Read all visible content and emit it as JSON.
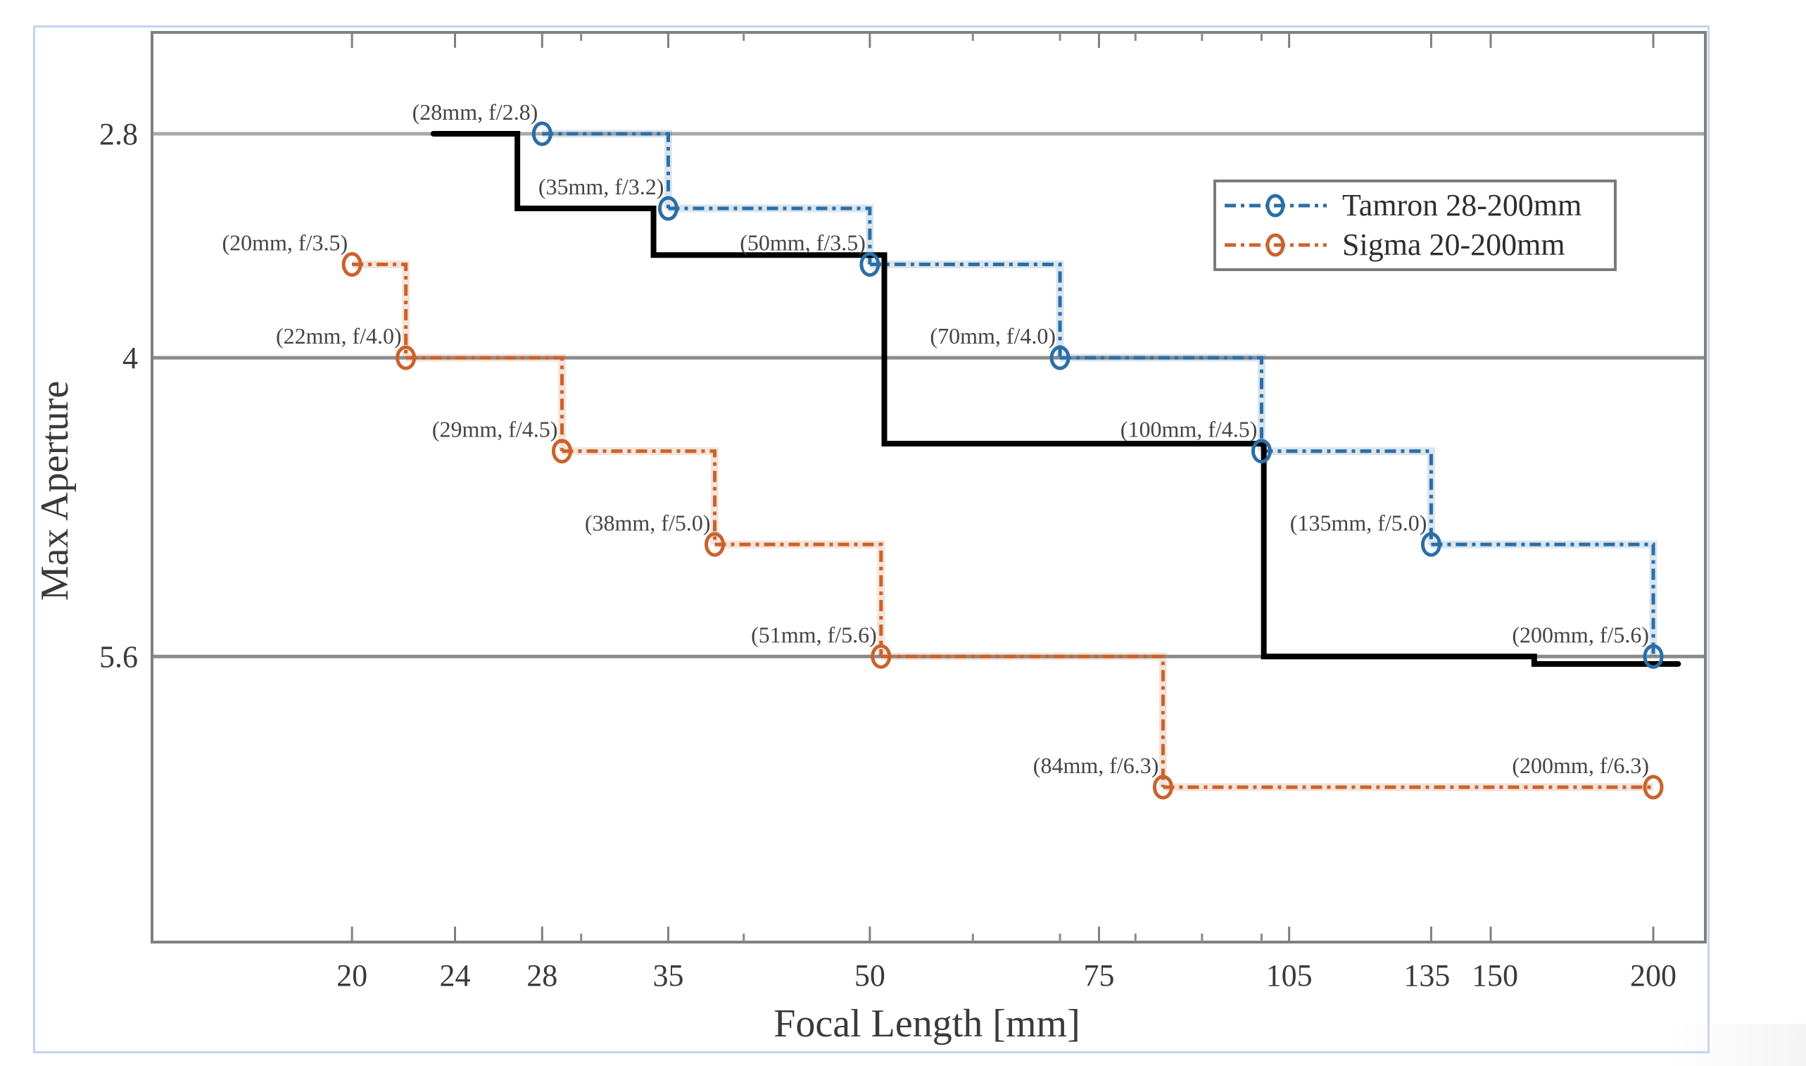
{
  "chart_data": {
    "type": "line",
    "subtype": "step",
    "title": "",
    "xlabel": "Focal Length [mm]",
    "ylabel": "Max Aperture",
    "xscale": "log",
    "xlim": [
      14.04,
      219.3
    ],
    "ylim": [
      2.257,
      7.13
    ],
    "y_reversed": true,
    "grid": "y-major",
    "x_ticks": [
      20,
      24,
      28,
      35,
      50,
      75,
      105,
      135,
      150,
      200
    ],
    "x_tick_labels": [
      "20",
      "24",
      "28",
      "35",
      "50",
      "75",
      "105",
      "135",
      "150",
      "200"
    ],
    "x_minor_ticks": [
      30,
      40,
      60,
      70,
      80,
      90,
      100
    ],
    "y_ticks": [
      2.8,
      4,
      5.6
    ],
    "y_tick_labels": [
      "2.8",
      "4",
      "5.6"
    ],
    "legend": {
      "placement": "upper-right",
      "entries": [
        "Tamron 28-200mm",
        "Sigma 20-200mm"
      ]
    },
    "series": [
      {
        "name": "Tamron 28-200mm",
        "color": "#2c6ea6",
        "marker": "circle",
        "line_style": "dash-dot",
        "x": [
          28,
          35,
          50,
          70,
          100,
          135,
          200
        ],
        "y": [
          2.8,
          3.2,
          3.5,
          4.0,
          4.5,
          5.0,
          5.6
        ],
        "labels": [
          "(28mm, f/2.8)",
          "(35mm, f/3.2)",
          "(50mm, f/3.5)",
          "(70mm, f/4.0)",
          "(100mm, f/4.5)",
          "(135mm, f/5.0)",
          "(200mm, f/5.6)"
        ]
      },
      {
        "name": "Sigma 20-200mm",
        "color": "#c9632c",
        "marker": "circle",
        "line_style": "dash-dot",
        "x": [
          20,
          22,
          29,
          38,
          51,
          84,
          200
        ],
        "y": [
          3.5,
          4.0,
          4.5,
          5.0,
          5.6,
          6.3,
          6.3
        ],
        "labels": [
          "(20mm, f/3.5)",
          "(22mm, f/4.0)",
          "(29mm, f/4.5)",
          "(38mm, f/5.0)",
          "(51mm, f/5.6)",
          "(84mm, f/6.3)",
          "(200mm, f/6.3)"
        ]
      },
      {
        "name": "",
        "color": "#000000",
        "marker": "none",
        "line_style": "solid",
        "in_legend": false,
        "x": [
          23.1,
          26.8,
          26.8,
          34.1,
          34.1,
          51.3,
          51.3,
          100.4,
          100.4,
          162,
          162,
          209
        ],
        "y": [
          2.8,
          2.8,
          3.2,
          3.2,
          3.45,
          3.45,
          4.46,
          4.46,
          5.6,
          5.6,
          5.64,
          5.64
        ]
      }
    ]
  }
}
